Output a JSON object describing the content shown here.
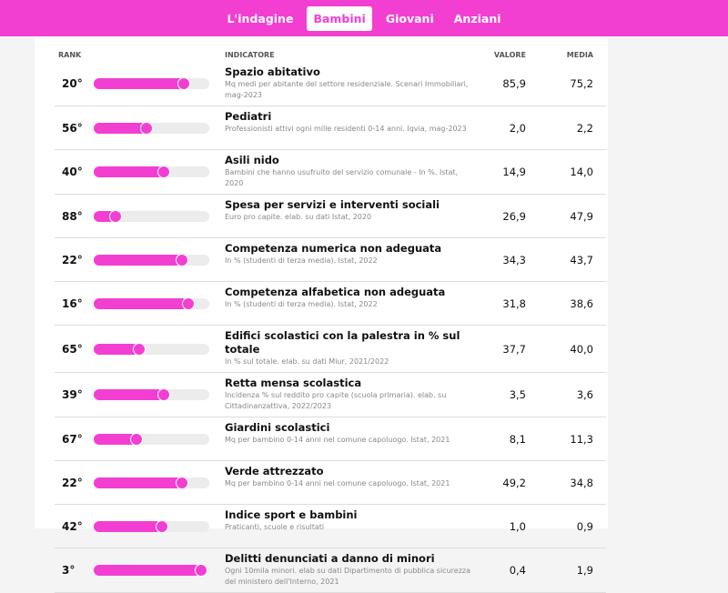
{
  "nav": {
    "tabs": [
      "L'indagine",
      "Bambini",
      "Giovani",
      "Anziani"
    ],
    "active": 1
  },
  "table": {
    "headers": [
      "RANK",
      "INDICATORE",
      "VALORE",
      "MEDIA"
    ],
    "rows": [
      {
        "rank": "20°",
        "bar": 78,
        "title": "Spazio abitativo",
        "note": "Mq medi per abitante del settore residenziale. Scenari Immobiliari, mag-2023",
        "value": "85,9",
        "media": "75,2"
      },
      {
        "rank": "56°",
        "bar": 46,
        "title": "Pediatri",
        "note": "Professionisti attivi ogni mille residenti 0-14 anni. Iqvia, mag-2023",
        "value": "2,0",
        "media": "2,2"
      },
      {
        "rank": "40°",
        "bar": 61,
        "title": "Asili nido",
        "note": "Bambini che hanno usufruito del servizio comunale - In %. Istat, 2020",
        "value": "14,9",
        "media": "14,0"
      },
      {
        "rank": "88°",
        "bar": 19,
        "title": "Spesa per servizi e interventi sociali",
        "note": "Euro pro capite. elab. su dati Istat, 2020",
        "value": "26,9",
        "media": "47,9"
      },
      {
        "rank": "22°",
        "bar": 76,
        "title": "Competenza numerica non adeguata",
        "note": "In % (studenti di terza media). Istat, 2022",
        "value": "34,3",
        "media": "43,7"
      },
      {
        "rank": "16°",
        "bar": 82,
        "title": "Competenza alfabetica non adeguata",
        "note": "In % (studenti di terza media). Istat, 2022",
        "value": "31,8",
        "media": "38,6"
      },
      {
        "rank": "65°",
        "bar": 39,
        "title": "Edifici scolastici con la palestra in % sul totale",
        "note": "In % sul totale. elab. su dati Miur, 2021/2022",
        "value": "37,7",
        "media": "40,0"
      },
      {
        "rank": "39°",
        "bar": 61,
        "title": "Retta mensa scolastica",
        "note": "Incidenza % sul reddito pro capite (scuola primaria). elab. su Cittadinanzattiva, 2022/2023",
        "value": "3,5",
        "media": "3,6"
      },
      {
        "rank": "67°",
        "bar": 37,
        "title": "Giardini scolastici",
        "note": "Mq per bambino 0-14 anni nel comune capoluogo. Istat, 2021",
        "value": "8,1",
        "media": "11,3"
      },
      {
        "rank": "22°",
        "bar": 76,
        "title": "Verde attrezzato",
        "note": "Mq per bambino 0-14 anni nel comune capoluogo. Istat, 2021",
        "value": "49,2",
        "media": "34,8"
      },
      {
        "rank": "42°",
        "bar": 59,
        "title": "Indice sport e bambini",
        "note": "Praticanti, scuole e risultati",
        "value": "1,0",
        "media": "0,9"
      },
      {
        "rank": "3°",
        "bar": 93,
        "title": "Delitti denunciati a danno di minori",
        "note": "Ogni 10mila minori. elab su dati Dipartimento di pubblica sicurezza del ministero dell'Interno, 2021",
        "value": "0,4",
        "media": "1,9"
      }
    ]
  }
}
